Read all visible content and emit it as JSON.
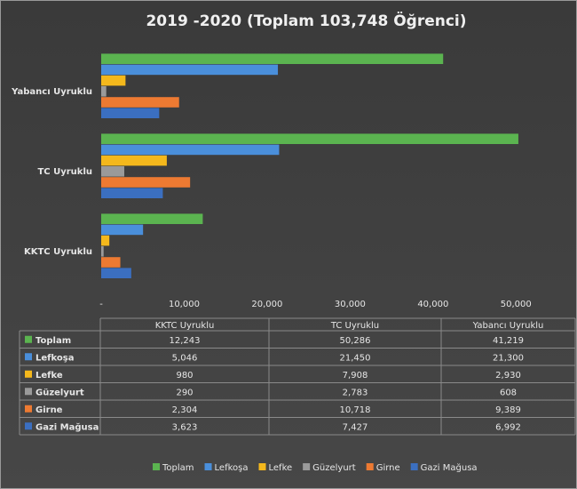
{
  "chart_data": {
    "type": "barh",
    "title": "2019 -2020 (Toplam 103,748 Öğrenci)",
    "categories": [
      "KKTC Uyruklu",
      "TC Uyruklu",
      "Yabancı Uyruklu"
    ],
    "series": [
      {
        "name": "Toplam",
        "color": "#5bb450",
        "values": [
          12243,
          50286,
          41219
        ],
        "value_labels": [
          "12,243",
          "50,286",
          "41,219"
        ]
      },
      {
        "name": "Lefkoşa",
        "color": "#4a8fdb",
        "values": [
          5046,
          21450,
          21300
        ],
        "value_labels": [
          "5,046",
          "21,450",
          "21,300"
        ]
      },
      {
        "name": "Lefke",
        "color": "#f4b81c",
        "values": [
          980,
          7908,
          2930
        ],
        "value_labels": [
          "980",
          "7,908",
          "2,930"
        ]
      },
      {
        "name": "Güzelyurt",
        "color": "#9a9a9a",
        "values": [
          290,
          2783,
          608
        ],
        "value_labels": [
          "290",
          "2,783",
          "608"
        ]
      },
      {
        "name": "Girne",
        "color": "#ed7a32",
        "values": [
          2304,
          10718,
          9389
        ],
        "value_labels": [
          "2,304",
          "10,718",
          "9,389"
        ]
      },
      {
        "name": "Gazi Mağusa",
        "color": "#3b6fc0",
        "values": [
          3623,
          7427,
          6992
        ],
        "value_labels": [
          "3,623",
          "7,427",
          "6,992"
        ]
      }
    ],
    "xlim": [
      0,
      55000
    ],
    "xticks": [
      {
        "value": 0,
        "label": "-"
      },
      {
        "value": 10000,
        "label": "10,000"
      },
      {
        "value": 20000,
        "label": "20,000"
      },
      {
        "value": 30000,
        "label": "30,000"
      },
      {
        "value": 40000,
        "label": "40,000"
      },
      {
        "value": 50000,
        "label": "50,000"
      }
    ],
    "grid": false
  }
}
